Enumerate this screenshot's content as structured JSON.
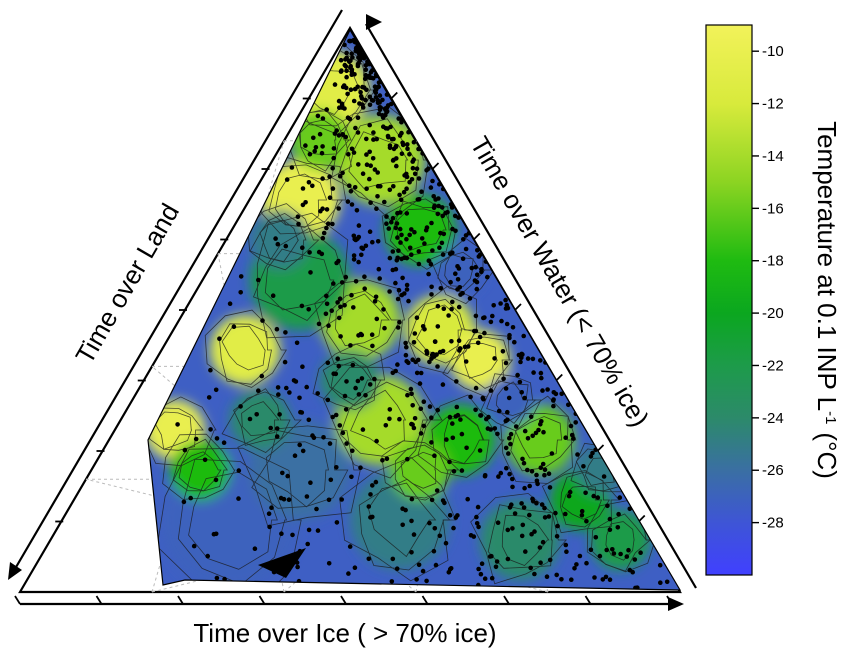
{
  "chart_data": {
    "type": "heatmap",
    "subtype": "ternary-contour",
    "title": "",
    "axes": {
      "bottom_label": "Time over Ice ( > 70% ice)",
      "left_label": "Time over Land",
      "right_label": "Time over Water (< 70% ice)"
    },
    "colorbar": {
      "label": "Temperature at 0.1 INP L",
      "label_superscript": "-1",
      "label_unit": "(°C)",
      "range": [
        -30,
        -9
      ],
      "ticks": [
        -10,
        -12,
        -14,
        -16,
        -18,
        -20,
        -22,
        -24,
        -26,
        -28
      ],
      "tick_labels": [
        "-10",
        "-12",
        "-14",
        "-16",
        "-18",
        "-20",
        "-22",
        "-24",
        "-26",
        "-28"
      ],
      "color_stops": [
        {
          "value": -9,
          "color": "#f2f25a"
        },
        {
          "value": -12,
          "color": "#d8ea3c"
        },
        {
          "value": -15,
          "color": "#8cd422"
        },
        {
          "value": -18,
          "color": "#1fbb11"
        },
        {
          "value": -20,
          "color": "#0ba71f"
        },
        {
          "value": -22,
          "color": "#1d9b4a"
        },
        {
          "value": -24,
          "color": "#2c8a6a"
        },
        {
          "value": -26,
          "color": "#3a6fa3"
        },
        {
          "value": -28,
          "color": "#3e55d6"
        },
        {
          "value": -30,
          "color": "#4040ff"
        }
      ]
    },
    "grid": true,
    "points_marker": "black dots",
    "regions_summary": [
      {
        "near": "top apex (land-water edge)",
        "temperature": -10
      },
      {
        "near": "left edge mid (land)",
        "temperature": -10
      },
      {
        "near": "bottom-left (ice)",
        "temperature": -26
      },
      {
        "near": "center",
        "temperature": -24
      },
      {
        "near": "right edge (water)",
        "temperature": -20
      }
    ]
  }
}
